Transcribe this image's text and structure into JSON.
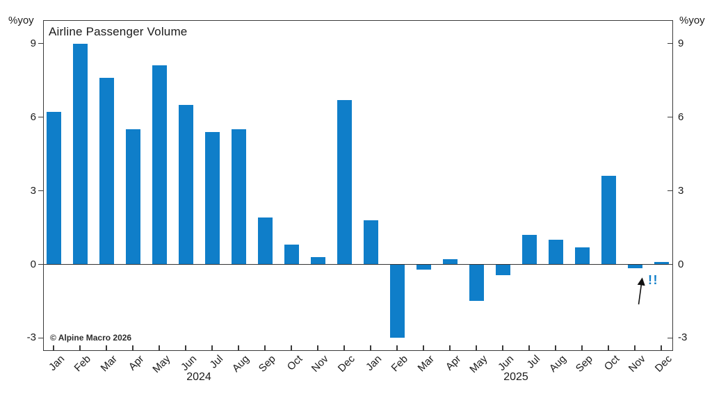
{
  "title": "Airline Passenger Volume",
  "y_axis_label_left": "%yoy",
  "y_axis_label_right": "%yoy",
  "copyright": "© Alpine Macro 2026",
  "annotation": {
    "text": "!!",
    "points_to": "Nov 2025"
  },
  "colors": {
    "bar": "#0f7ec9",
    "annotation": "#0f7ec9",
    "axis": "#3a3a3a",
    "text": "#1a1a1a"
  },
  "chart_data": {
    "type": "bar",
    "title": "Airline Passenger Volume",
    "unit": "%yoy",
    "categories": [
      "Jan",
      "Feb",
      "Mar",
      "Apr",
      "May",
      "Jun",
      "Jul",
      "Aug",
      "Sep",
      "Oct",
      "Nov",
      "Dec",
      "Jan",
      "Feb",
      "Mar",
      "Apr",
      "May",
      "Jun",
      "Jul",
      "Aug",
      "Sep",
      "Oct",
      "Nov",
      "Dec"
    ],
    "values": [
      6.2,
      9.0,
      7.6,
      5.5,
      8.1,
      6.5,
      5.4,
      5.5,
      1.9,
      0.8,
      0.3,
      6.7,
      1.8,
      -3.0,
      -0.2,
      0.2,
      -1.5,
      -0.45,
      1.2,
      1.0,
      0.7,
      3.6,
      -0.15,
      0.1
    ],
    "year_groups": [
      {
        "label": "2024",
        "start": 0,
        "end": 11
      },
      {
        "label": "2025",
        "start": 12,
        "end": 23
      }
    ],
    "yticks": [
      9,
      6,
      3,
      0,
      -3
    ],
    "ylim": [
      -3.5,
      9.9
    ],
    "grid": false,
    "legend": null
  }
}
